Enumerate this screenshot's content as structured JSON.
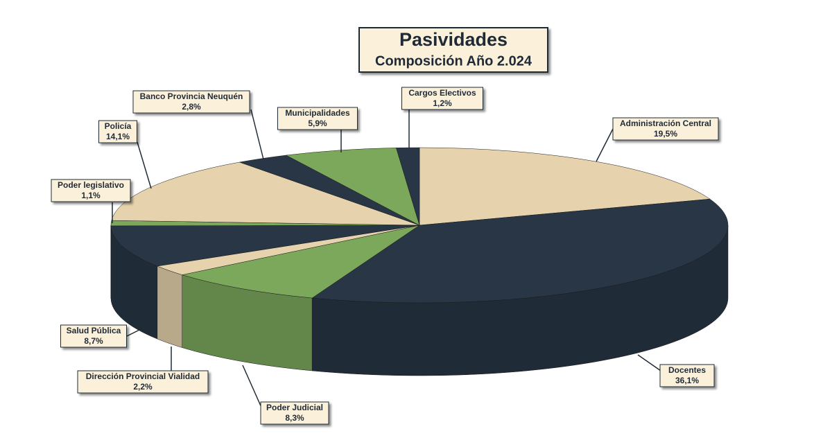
{
  "chart_data": {
    "type": "pie3d",
    "title": "Pasividades",
    "subtitle": "Composición Año 2.024",
    "categories": [
      "Administración Central",
      "Docentes",
      "Poder Judicial",
      "Dirección Provincial Vialidad",
      "Salud Pública",
      "Poder legislativo",
      "Policía",
      "Banco Provincia Neuquén",
      "Municipalidades",
      "Cargos Electivos"
    ],
    "values": [
      19.5,
      36.1,
      8.3,
      2.2,
      8.7,
      1.1,
      14.1,
      2.8,
      5.9,
      1.2
    ],
    "value_labels": [
      "19,5%",
      "36,1%",
      "8,3%",
      "2,2%",
      "8,7%",
      "1,1%",
      "14,1%",
      "2,8%",
      "5,9%",
      "1,2%"
    ],
    "colors": [
      "#e6d3ae",
      "#283646",
      "#7ca85c",
      "#e6d3ae",
      "#283646",
      "#7ca85c",
      "#e6d3ae",
      "#283646",
      "#7ca85c",
      "#283646"
    ]
  }
}
